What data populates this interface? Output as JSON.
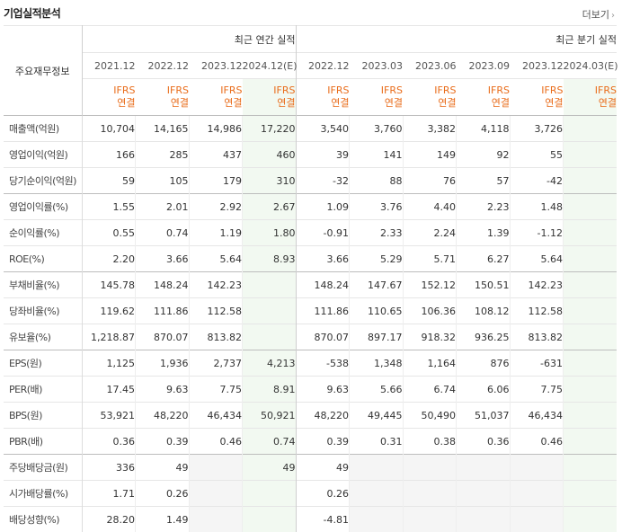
{
  "header": {
    "title": "기업실적분석",
    "more_label": "더보기",
    "more_arrow": "›"
  },
  "table": {
    "corner_label": "주요재무정보",
    "group_annual": "최근 연간 실적",
    "group_quarter": "최근 분기 실적",
    "periods": [
      "2021.12",
      "2022.12",
      "2023.12",
      "2024.12(E)",
      "2022.12",
      "2023.03",
      "2023.06",
      "2023.09",
      "2023.12",
      "2024.03(E)"
    ],
    "ifrs_top": "IFRS",
    "ifrs_bottom": "연결",
    "rows": [
      {
        "label": "매출액(억원)",
        "values": [
          "10,704",
          "14,165",
          "14,986",
          "17,220",
          "3,540",
          "3,760",
          "3,382",
          "4,118",
          "3,726",
          ""
        ]
      },
      {
        "label": "영업이익(억원)",
        "values": [
          "166",
          "285",
          "437",
          "460",
          "39",
          "141",
          "149",
          "92",
          "55",
          ""
        ]
      },
      {
        "label": "당기순이익(억원)",
        "values": [
          "59",
          "105",
          "179",
          "310",
          "-32",
          "88",
          "76",
          "57",
          "-42",
          ""
        ]
      },
      {
        "label": "영업이익률(%)",
        "values": [
          "1.55",
          "2.01",
          "2.92",
          "2.67",
          "1.09",
          "3.76",
          "4.40",
          "2.23",
          "1.48",
          ""
        ]
      },
      {
        "label": "순이익률(%)",
        "values": [
          "0.55",
          "0.74",
          "1.19",
          "1.80",
          "-0.91",
          "2.33",
          "2.24",
          "1.39",
          "-1.12",
          ""
        ]
      },
      {
        "label": "ROE(%)",
        "values": [
          "2.20",
          "3.66",
          "5.64",
          "8.93",
          "3.66",
          "5.29",
          "5.71",
          "6.27",
          "5.64",
          ""
        ]
      },
      {
        "label": "부채비율(%)",
        "values": [
          "145.78",
          "148.24",
          "142.23",
          "",
          "148.24",
          "147.67",
          "152.12",
          "150.51",
          "142.23",
          ""
        ]
      },
      {
        "label": "당좌비율(%)",
        "values": [
          "119.62",
          "111.86",
          "112.58",
          "",
          "111.86",
          "110.65",
          "106.36",
          "108.12",
          "112.58",
          ""
        ]
      },
      {
        "label": "유보율(%)",
        "values": [
          "1,218.87",
          "870.07",
          "813.82",
          "",
          "870.07",
          "897.17",
          "918.32",
          "936.25",
          "813.82",
          ""
        ]
      },
      {
        "label": "EPS(원)",
        "values": [
          "1,125",
          "1,936",
          "2,737",
          "4,213",
          "-538",
          "1,348",
          "1,164",
          "876",
          "-631",
          ""
        ]
      },
      {
        "label": "PER(배)",
        "values": [
          "17.45",
          "9.63",
          "7.75",
          "8.91",
          "9.63",
          "5.66",
          "6.74",
          "6.06",
          "7.75",
          ""
        ]
      },
      {
        "label": "BPS(원)",
        "values": [
          "53,921",
          "48,220",
          "46,434",
          "50,921",
          "48,220",
          "49,445",
          "50,490",
          "51,037",
          "46,434",
          ""
        ]
      },
      {
        "label": "PBR(배)",
        "values": [
          "0.36",
          "0.39",
          "0.46",
          "0.74",
          "0.39",
          "0.31",
          "0.38",
          "0.36",
          "0.46",
          ""
        ]
      },
      {
        "label": "주당배당금(원)",
        "values": [
          "336",
          "49",
          "",
          "49",
          "49",
          "",
          "",
          "",
          "",
          ""
        ]
      },
      {
        "label": "시가배당률(%)",
        "values": [
          "1.71",
          "0.26",
          "",
          "",
          "0.26",
          "",
          "",
          "",
          "",
          ""
        ]
      },
      {
        "label": "배당성향(%)",
        "values": [
          "28.20",
          "1.49",
          "",
          "",
          "-4.81",
          "",
          "",
          "",
          "",
          ""
        ]
      }
    ]
  }
}
